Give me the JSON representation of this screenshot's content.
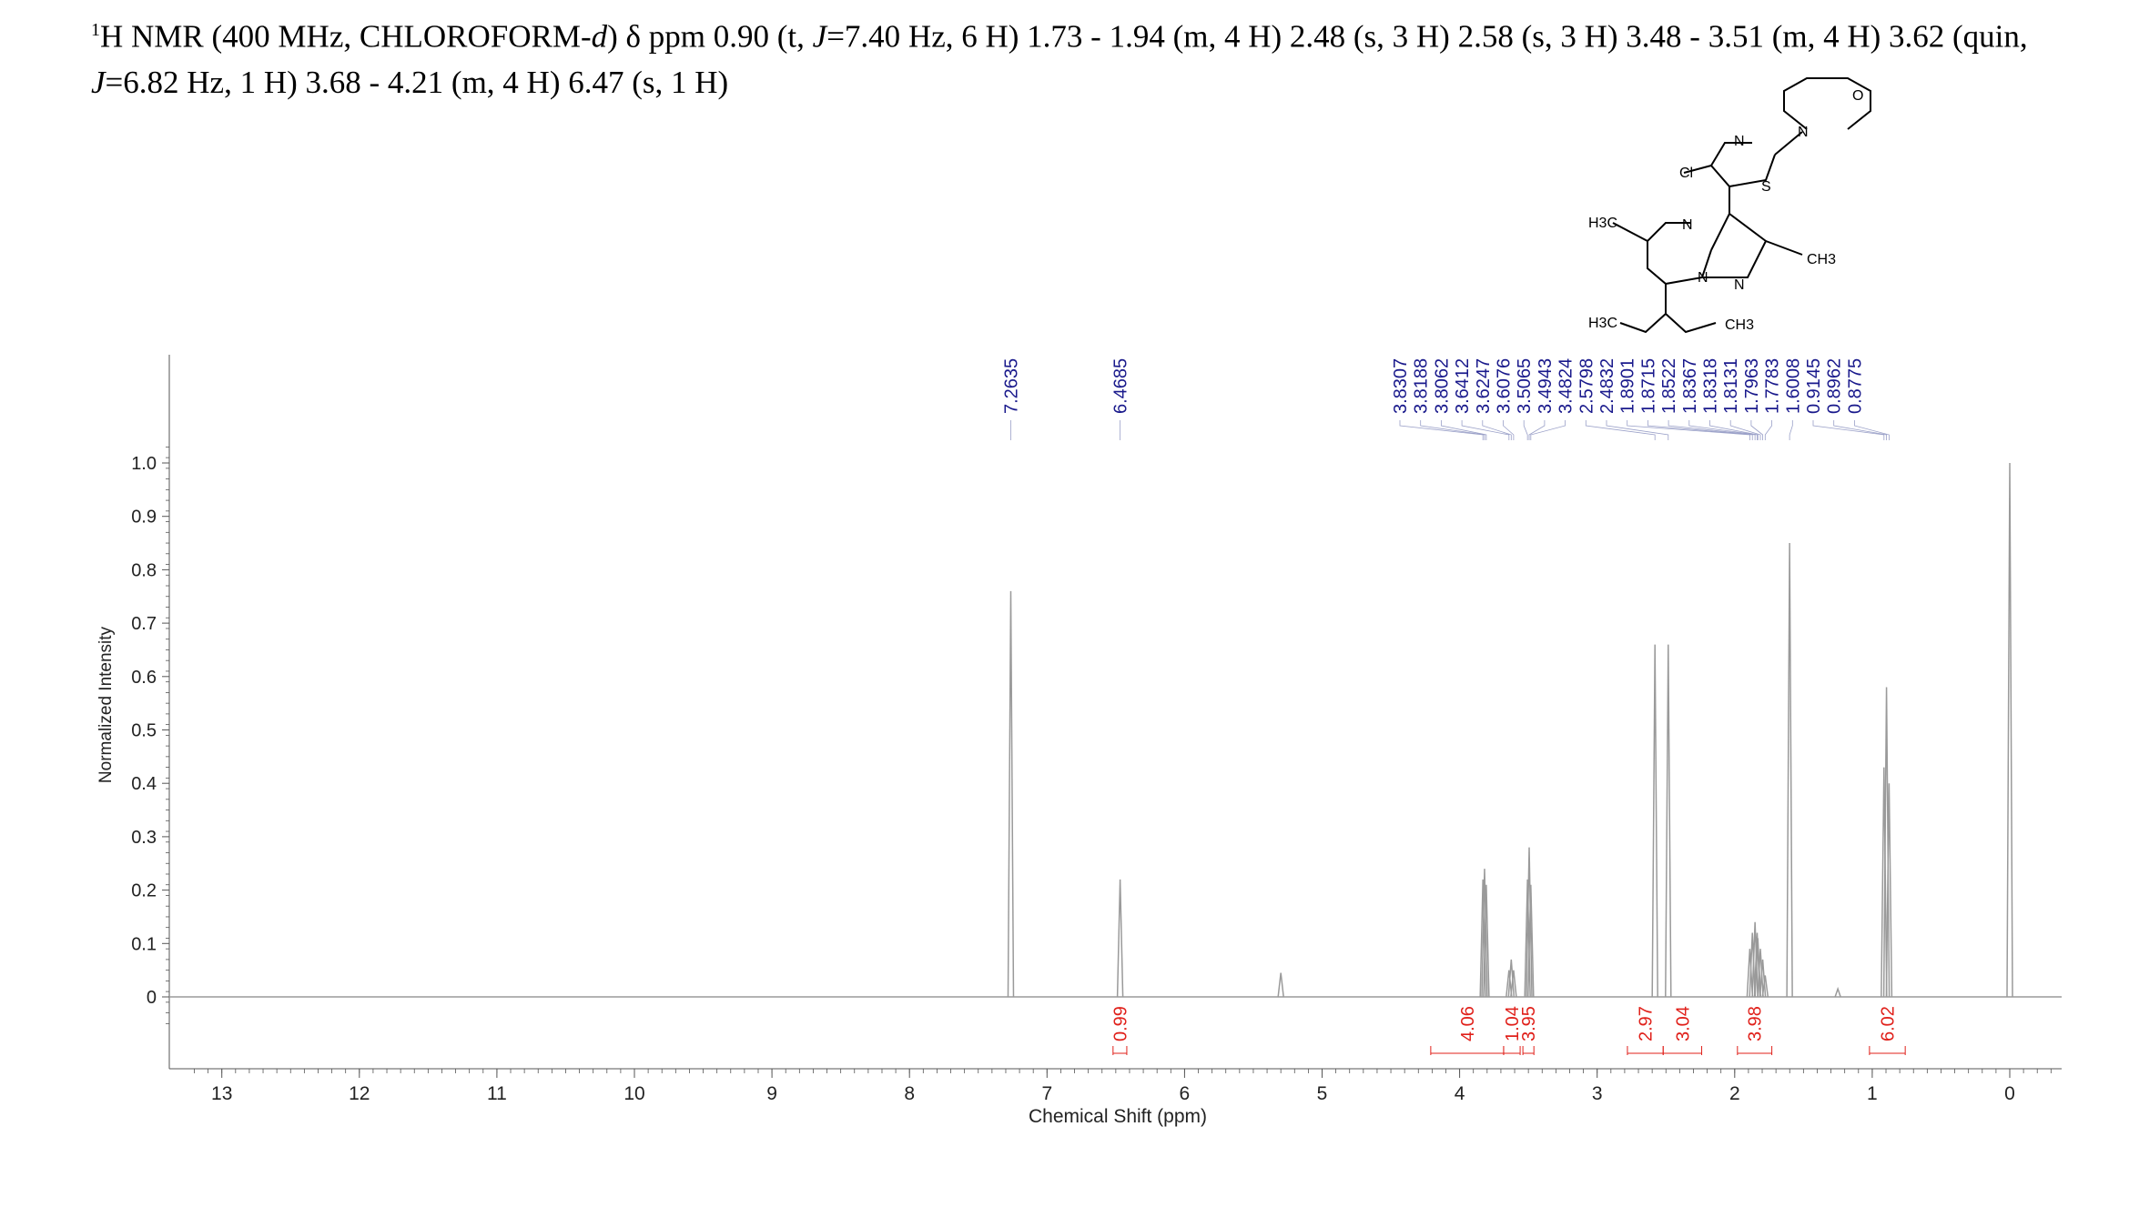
{
  "header": {
    "sup": "1",
    "line1_a": "H NMR (400 MHz, CHLOROFORM-",
    "line1_b": "d",
    "line1_c": ") δ ppm 0.90 (t, ",
    "line1_d": "J",
    "line1_e": "=7.40 Hz, 6 H) 1.73 - 1.94 (m, 4 H) 2.48 (s, 3 H) 2.58 (s, 3 H) 3.48 - 3.51 (m, 4 H) 3.62 (quin,",
    "line2_a": "J",
    "line2_b": "=6.82 Hz, 1 H) 3.68 - 4.21 (m, 4 H) 6.47 (s, 1 H)"
  },
  "structure": {
    "atoms": [
      "N",
      "O",
      "N",
      "Cl",
      "S",
      "H3C",
      "N",
      "N",
      "N",
      "CH3",
      "H3C",
      "CH3"
    ]
  },
  "colors": {
    "spectrum": "#9a9a9a",
    "peak_label": "#1a1a8c",
    "integral": "#e0201a",
    "axis": "#555555"
  },
  "chart_data": {
    "type": "line",
    "xlabel": "Chemical Shift (ppm)",
    "ylabel": "Normalized Intensity",
    "xlim": [
      13.3,
      -0.4
    ],
    "ylim": [
      -0.15,
      1.12
    ],
    "x_ticks": [
      13,
      12,
      11,
      10,
      9,
      8,
      7,
      6,
      5,
      4,
      3,
      2,
      1,
      0
    ],
    "y_ticks": [
      {
        "value": 1.0,
        "label": "1.0"
      },
      {
        "value": 0.9,
        "label": "0.9"
      },
      {
        "value": 0.8,
        "label": "0.8"
      },
      {
        "value": 0.7,
        "label": "0.7"
      },
      {
        "value": 0.6,
        "label": "0.6"
      },
      {
        "value": 0.5,
        "label": "0.5"
      },
      {
        "value": 0.4,
        "label": "0.4"
      },
      {
        "value": 0.3,
        "label": "0.3"
      },
      {
        "value": 0.2,
        "label": "0.2"
      },
      {
        "value": 0.1,
        "label": "0.1"
      },
      {
        "value": 0,
        "label": "0"
      }
    ],
    "peaks": [
      {
        "ppm": 7.2635,
        "intensity": 0.76
      },
      {
        "ppm": 6.4685,
        "intensity": 0.22
      },
      {
        "ppm": 5.3,
        "intensity": 0.045
      },
      {
        "ppm": 3.8307,
        "intensity": 0.22
      },
      {
        "ppm": 3.8188,
        "intensity": 0.24
      },
      {
        "ppm": 3.8062,
        "intensity": 0.21
      },
      {
        "ppm": 3.6412,
        "intensity": 0.05
      },
      {
        "ppm": 3.6247,
        "intensity": 0.07
      },
      {
        "ppm": 3.6076,
        "intensity": 0.05
      },
      {
        "ppm": 3.5065,
        "intensity": 0.22
      },
      {
        "ppm": 3.4943,
        "intensity": 0.28
      },
      {
        "ppm": 3.4824,
        "intensity": 0.21
      },
      {
        "ppm": 2.5798,
        "intensity": 0.66
      },
      {
        "ppm": 2.4832,
        "intensity": 0.66
      },
      {
        "ppm": 1.8901,
        "intensity": 0.09
      },
      {
        "ppm": 1.8715,
        "intensity": 0.12
      },
      {
        "ppm": 1.8522,
        "intensity": 0.14
      },
      {
        "ppm": 1.8367,
        "intensity": 0.12
      },
      {
        "ppm": 1.8318,
        "intensity": 0.11
      },
      {
        "ppm": 1.8131,
        "intensity": 0.09
      },
      {
        "ppm": 1.7963,
        "intensity": 0.07
      },
      {
        "ppm": 1.7783,
        "intensity": 0.04
      },
      {
        "ppm": 1.6008,
        "intensity": 0.85
      },
      {
        "ppm": 1.25,
        "intensity": 0.015
      },
      {
        "ppm": 0.9145,
        "intensity": 0.43
      },
      {
        "ppm": 0.8962,
        "intensity": 0.58
      },
      {
        "ppm": 0.8775,
        "intensity": 0.4
      },
      {
        "ppm": 0.0,
        "intensity": 1.0
      }
    ],
    "peak_labels": [
      {
        "ppm": 7.2635,
        "label": "7.2635"
      },
      {
        "ppm": 6.4685,
        "label": "6.4685"
      },
      {
        "ppm": 3.8307,
        "label": "3.8307"
      },
      {
        "ppm": 3.8188,
        "label": "3.8188"
      },
      {
        "ppm": 3.8062,
        "label": "3.8062"
      },
      {
        "ppm": 3.6412,
        "label": "3.6412"
      },
      {
        "ppm": 3.6247,
        "label": "3.6247"
      },
      {
        "ppm": 3.6076,
        "label": "3.6076"
      },
      {
        "ppm": 3.5065,
        "label": "3.5065"
      },
      {
        "ppm": 3.4943,
        "label": "3.4943"
      },
      {
        "ppm": 3.4824,
        "label": "3.4824"
      },
      {
        "ppm": 2.5798,
        "label": "2.5798"
      },
      {
        "ppm": 2.4832,
        "label": "2.4832"
      },
      {
        "ppm": 1.8901,
        "label": "1.8901"
      },
      {
        "ppm": 1.8715,
        "label": "1.8715"
      },
      {
        "ppm": 1.8522,
        "label": "1.8522"
      },
      {
        "ppm": 1.8367,
        "label": "1.8367"
      },
      {
        "ppm": 1.8318,
        "label": "1.8318"
      },
      {
        "ppm": 1.8131,
        "label": "1.8131"
      },
      {
        "ppm": 1.7963,
        "label": "1.7963"
      },
      {
        "ppm": 1.7783,
        "label": "1.7783"
      },
      {
        "ppm": 1.6008,
        "label": "1.6008"
      },
      {
        "ppm": 0.9145,
        "label": "0.9145"
      },
      {
        "ppm": 0.8962,
        "label": "0.8962"
      },
      {
        "ppm": 0.8775,
        "label": "0.8775"
      }
    ],
    "integrals": [
      {
        "from": 6.52,
        "to": 6.42,
        "value": "0.99"
      },
      {
        "from": 4.21,
        "to": 3.68,
        "value": "4.06"
      },
      {
        "from": 3.68,
        "to": 3.56,
        "value": "1.04"
      },
      {
        "from": 3.54,
        "to": 3.46,
        "value": "3.95"
      },
      {
        "from": 2.78,
        "to": 2.52,
        "value": "2.97"
      },
      {
        "from": 2.52,
        "to": 2.24,
        "value": "3.04"
      },
      {
        "from": 1.98,
        "to": 1.73,
        "value": "3.98"
      },
      {
        "from": 1.02,
        "to": 0.76,
        "value": "6.02"
      }
    ]
  }
}
